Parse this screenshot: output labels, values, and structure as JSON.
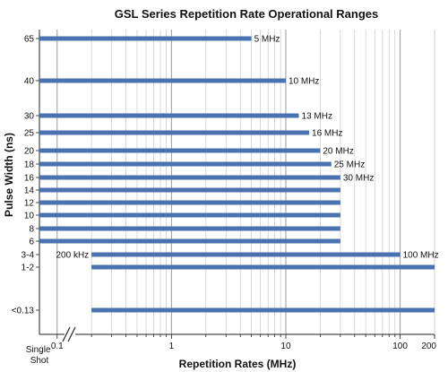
{
  "chart_data": {
    "type": "bar",
    "orientation": "horizontal-range",
    "title": "GSL Series Repetition Rate Operational Ranges",
    "xlabel": "Repetition Rates (MHz)",
    "ylabel": "Pulse Width (ns)",
    "x_scale": "log",
    "xlim": [
      0.07,
      200
    ],
    "x_ticks": [
      {
        "value": 0.1,
        "label": "0.1"
      },
      {
        "value": 1,
        "label": "1"
      },
      {
        "value": 10,
        "label": "10"
      },
      {
        "value": 100,
        "label": "100"
      },
      {
        "value": 200,
        "label": "200"
      }
    ],
    "x_break_label": "Single Shot",
    "grid": true,
    "bar_color": "#4a72b0",
    "categories": [
      "65",
      "40",
      "30",
      "25",
      "20",
      "18",
      "16",
      "14",
      "12",
      "10",
      "8",
      "6",
      "3-4",
      "1-2",
      "<0.13"
    ],
    "bars": [
      {
        "pulse_width": "65",
        "x_start": 0.07,
        "x_end": 5,
        "end_label": "5 MHz"
      },
      {
        "pulse_width": "40",
        "x_start": 0.07,
        "x_end": 10,
        "end_label": "10 MHz"
      },
      {
        "pulse_width": "30",
        "x_start": 0.07,
        "x_end": 13,
        "end_label": "13 MHz"
      },
      {
        "pulse_width": "25",
        "x_start": 0.07,
        "x_end": 16,
        "end_label": "16 MHz"
      },
      {
        "pulse_width": "20",
        "x_start": 0.07,
        "x_end": 20,
        "end_label": "20 MHz"
      },
      {
        "pulse_width": "18",
        "x_start": 0.07,
        "x_end": 25,
        "end_label": "25 MHz"
      },
      {
        "pulse_width": "16",
        "x_start": 0.07,
        "x_end": 30,
        "end_label": "30 MHz"
      },
      {
        "pulse_width": "14",
        "x_start": 0.07,
        "x_end": 30,
        "end_label": ""
      },
      {
        "pulse_width": "12",
        "x_start": 0.07,
        "x_end": 30,
        "end_label": ""
      },
      {
        "pulse_width": "10",
        "x_start": 0.07,
        "x_end": 30,
        "end_label": ""
      },
      {
        "pulse_width": "8",
        "x_start": 0.07,
        "x_end": 30,
        "end_label": ""
      },
      {
        "pulse_width": "6",
        "x_start": 0.07,
        "x_end": 30,
        "end_label": ""
      },
      {
        "pulse_width": "3-4",
        "x_start": 0.2,
        "x_end": 100,
        "start_label": "200 kHz",
        "end_label": "100 MHz"
      },
      {
        "pulse_width": "1-2",
        "x_start": 0.2,
        "x_end": 200,
        "end_label": ""
      },
      {
        "pulse_width": "<0.13",
        "x_start": 0.2,
        "x_end": 200,
        "end_label": ""
      }
    ]
  }
}
